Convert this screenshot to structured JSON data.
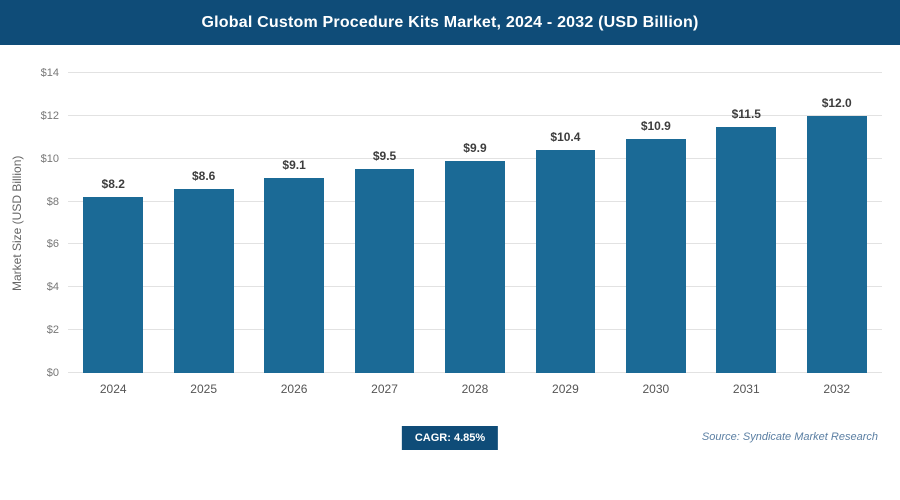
{
  "header": {
    "title": "Global Custom Procedure Kits Market, 2024 - 2032 (USD Billion)"
  },
  "chart_data": {
    "type": "bar",
    "title": "Global Custom Procedure Kits Market, 2024 - 2032 (USD Billion)",
    "categories": [
      "2024",
      "2025",
      "2026",
      "2027",
      "2028",
      "2029",
      "2030",
      "2031",
      "2032"
    ],
    "values": [
      8.2,
      8.6,
      9.1,
      9.5,
      9.9,
      10.4,
      10.9,
      11.5,
      12.0
    ],
    "value_labels": [
      "$8.2",
      "$8.6",
      "$9.1",
      "$9.5",
      "$9.9",
      "$10.4",
      "$10.9",
      "$11.5",
      "$12.0"
    ],
    "xlabel": "",
    "ylabel": "Market Size (USD Billion)",
    "ylim": [
      0,
      14
    ],
    "yticks": [
      0,
      2,
      4,
      6,
      8,
      10,
      12,
      14
    ],
    "ytick_labels": [
      "$0",
      "$2",
      "$4",
      "$6",
      "$8",
      "$10",
      "$12",
      "$14"
    ],
    "grid": true,
    "legend": false,
    "bar_color": "#1b6a96"
  },
  "footer": {
    "cagr_label": "CAGR: 4.85%",
    "source": "Source: Syndicate Market Research"
  },
  "colors": {
    "header_bg": "#0f4c78",
    "bar": "#1b6a96",
    "badge_bg": "#0f4c78",
    "gridline": "#e2e2e2"
  }
}
